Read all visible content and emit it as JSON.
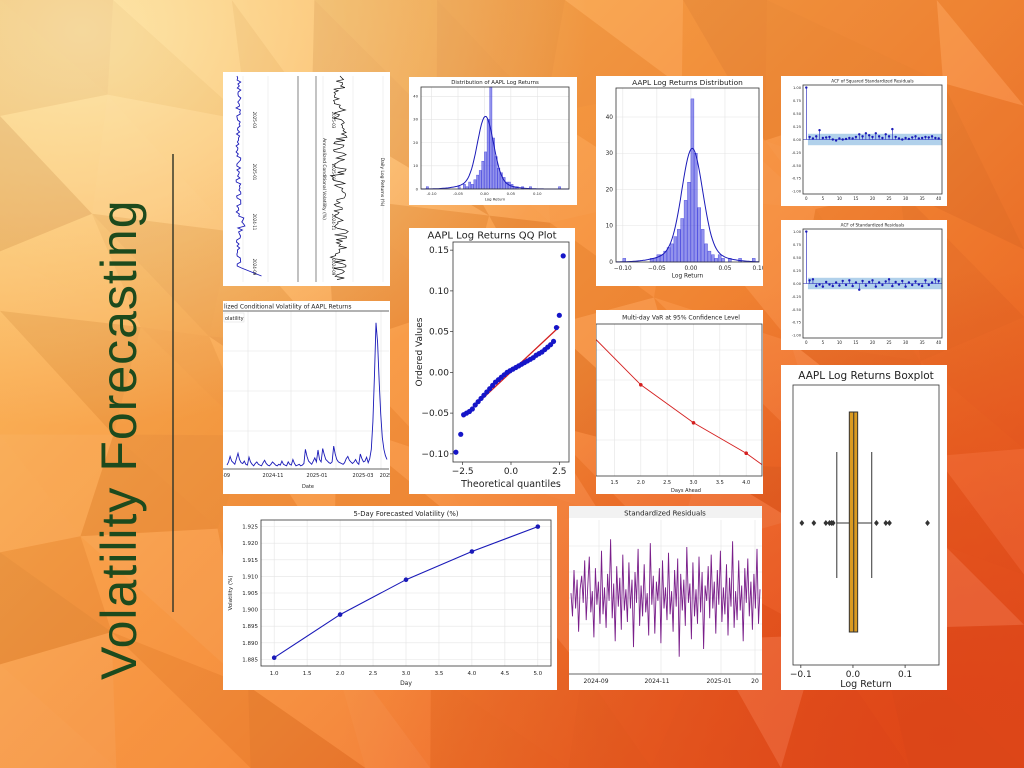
{
  "slide": {
    "title": "Volatility Forecasting",
    "accent": "#1d4a1d"
  },
  "colors": {
    "line": "#1a1ab8",
    "hist": "#3b3bdc",
    "box": "#d99a22",
    "trend": "#d42020",
    "resid": "#7a1f8a",
    "ci": "#9ec5e6"
  },
  "chart_data": [
    {
      "id": "rotated-series",
      "type": "line",
      "xtick_labels": [
        "2024-09",
        "2024-11",
        "2025-01",
        "2025-03"
      ],
      "ylabel_left": "Annualized Conditional Volatility (%)",
      "ylabel_right": "Daily Log Returns (%)"
    },
    {
      "id": "dist-small",
      "type": "bar",
      "title": "Distribution of AAPL Log Returns",
      "xlabel": "Log Return",
      "xticks": [
        -0.1,
        -0.05,
        0.0,
        0.05,
        0.1
      ],
      "xtick_labels": [
        "-0.10",
        "-0.05",
        "0.00",
        "0.05",
        "0.10"
      ],
      "xlim": [
        -0.12,
        0.16
      ],
      "ylim": [
        0,
        44
      ],
      "yticks": [
        0,
        10,
        20,
        30,
        40
      ],
      "bins_start": -0.11,
      "bin_width": 0.005,
      "values": [
        1,
        0,
        0,
        0,
        0,
        0,
        0,
        0,
        0,
        0,
        0,
        0,
        1,
        0,
        2,
        1,
        3,
        2,
        4,
        6,
        8,
        12,
        16,
        30,
        44,
        22,
        14,
        9,
        7,
        5,
        3,
        3,
        2,
        1,
        1,
        0,
        1,
        0,
        0,
        1,
        0,
        0,
        0,
        0,
        0,
        0,
        0,
        0,
        0,
        0,
        1
      ]
    },
    {
      "id": "dist-main",
      "type": "bar",
      "title": "AAPL Log Returns Distribution",
      "xlabel": "Log Return",
      "xticks": [
        -0.1,
        -0.05,
        0.0,
        0.05,
        0.1
      ],
      "xtick_labels": [
        "−0.10",
        "−0.05",
        "0.00",
        "0.05",
        "0.10"
      ],
      "yticks": [
        0,
        10,
        20,
        30,
        40
      ],
      "ylim": [
        0,
        48
      ],
      "xlim": [
        -0.11,
        0.1
      ],
      "bins_start": -0.1,
      "bin_width": 0.005,
      "values": [
        1,
        0,
        0,
        0,
        0,
        0,
        0,
        0,
        1,
        1,
        2,
        2,
        3,
        4,
        5,
        7,
        9,
        12,
        17,
        22,
        45,
        30,
        15,
        9,
        5,
        3,
        2,
        1,
        2,
        1,
        0,
        1,
        0,
        0,
        1,
        0,
        0,
        0,
        1
      ]
    },
    {
      "id": "acf-squared",
      "type": "scatter",
      "title": "ACF of Squared Standardized Residuals",
      "lags": [
        0,
        1,
        2,
        3,
        4,
        5,
        6,
        7,
        8,
        9,
        10,
        11,
        12,
        13,
        14,
        15,
        16,
        17,
        18,
        19,
        20,
        21,
        22,
        23,
        24,
        25,
        26,
        27,
        28,
        29,
        30,
        31,
        32,
        33,
        34,
        35,
        36,
        37,
        38,
        39,
        40
      ],
      "values": [
        1.0,
        0.05,
        0.02,
        0.06,
        0.18,
        0.03,
        0.04,
        0.05,
        0.0,
        -0.02,
        0.02,
        0.0,
        0.01,
        0.03,
        0.02,
        0.05,
        0.1,
        0.06,
        0.12,
        0.08,
        0.05,
        0.12,
        0.06,
        0.03,
        0.1,
        0.06,
        0.2,
        0.05,
        0.02,
        0.0,
        0.03,
        0.01,
        0.04,
        0.06,
        0.02,
        0.03,
        0.05,
        0.04,
        0.06,
        0.03,
        0.02
      ],
      "ci": 0.11,
      "xticks": [
        0,
        5,
        10,
        15,
        20,
        25,
        30,
        35,
        40
      ],
      "yticks": [
        -1.0,
        -0.75,
        -0.5,
        -0.25,
        0.0,
        0.25,
        0.5,
        0.75,
        1.0
      ],
      "ytick_labels": [
        "-1.00",
        "-0.75",
        "-0.50",
        "-0.25",
        "0.00",
        "0.25",
        "0.50",
        "0.75",
        "1.00"
      ],
      "xlim": [
        -1,
        41
      ],
      "ylim": [
        -1.05,
        1.05
      ]
    },
    {
      "id": "acf-standard",
      "type": "scatter",
      "title": "ACF of Standardized Residuals",
      "lags": [
        0,
        1,
        2,
        3,
        4,
        5,
        6,
        7,
        8,
        9,
        10,
        11,
        12,
        13,
        14,
        15,
        16,
        17,
        18,
        19,
        20,
        21,
        22,
        23,
        24,
        25,
        26,
        27,
        28,
        29,
        30,
        31,
        32,
        33,
        34,
        35,
        36,
        37,
        38,
        39,
        40
      ],
      "values": [
        1.0,
        0.06,
        0.08,
        -0.05,
        -0.02,
        -0.06,
        0.03,
        -0.02,
        -0.05,
        0.02,
        -0.04,
        0.05,
        -0.03,
        0.06,
        -0.05,
        0.02,
        -0.12,
        0.05,
        -0.04,
        0.03,
        0.06,
        -0.06,
        0.02,
        -0.03,
        0.04,
        0.08,
        -0.05,
        0.03,
        -0.02,
        0.05,
        -0.06,
        0.02,
        -0.03,
        0.04,
        -0.02,
        -0.05,
        0.06,
        -0.03,
        0.02,
        0.08,
        0.05
      ],
      "ci": 0.11,
      "xticks": [
        0,
        5,
        10,
        15,
        20,
        25,
        30,
        35,
        40
      ],
      "yticks": [
        -1.0,
        -0.75,
        -0.5,
        -0.25,
        0.0,
        0.25,
        0.5,
        0.75,
        1.0
      ],
      "ytick_labels": [
        "-1.00",
        "-0.75",
        "-0.50",
        "-0.25",
        "0.00",
        "0.25",
        "0.50",
        "0.75",
        "1.00"
      ],
      "xlim": [
        -1,
        41
      ],
      "ylim": [
        -1.05,
        1.05
      ]
    },
    {
      "id": "cond-vol",
      "type": "line",
      "title": "lized Conditional Volatility of AAPL Returns",
      "legend": "olatility",
      "xlabel": "Date",
      "xtick_labels": [
        "-09",
        "2024-11",
        "2025-01",
        "2025-03",
        "2025"
      ],
      "values": [
        0.5,
        0.9,
        1.6,
        1.0,
        0.8,
        0.6,
        1.3,
        2.0,
        1.2,
        0.8,
        0.7,
        1.0,
        0.6,
        0.5,
        1.5,
        0.9,
        0.6,
        0.4,
        0.7,
        0.9,
        0.6,
        0.5,
        0.4,
        0.8,
        1.1,
        0.7,
        0.5,
        0.4,
        0.6,
        0.9,
        0.7,
        0.5,
        0.4,
        0.6,
        0.5,
        1.0,
        0.6,
        0.5,
        0.4,
        0.9,
        0.6,
        0.5,
        1.2,
        0.7,
        0.4,
        0.5,
        0.6,
        0.4,
        0.5,
        0.7,
        2.5,
        1.6,
        1.0,
        0.8,
        0.6,
        1.0,
        1.4,
        0.9,
        2.4,
        1.2,
        0.9,
        2.6,
        1.8,
        1.2,
        1.0,
        0.8,
        0.7,
        0.9,
        2.9,
        1.9,
        1.2,
        0.9,
        0.8,
        0.7,
        0.6,
        0.8,
        1.3,
        1.6,
        1.1,
        0.9,
        0.7,
        0.9,
        1.2,
        0.8,
        0.6,
        1.9,
        1.3,
        0.9,
        1.0,
        1.5,
        0.8,
        1.3,
        2.5,
        6.0,
        12.0,
        18.5,
        16.0,
        11.0,
        7.0,
        4.0,
        2.5,
        1.7,
        1.2
      ],
      "ylim": [
        0,
        20
      ]
    },
    {
      "id": "qq-plot",
      "type": "scatter",
      "title": "AAPL Log Returns QQ Plot",
      "xlabel": "Theoretical quantiles",
      "ylabel": "Ordered Values",
      "xticks": [
        -2.5,
        0.0,
        2.5
      ],
      "xtick_labels": [
        "−2.5",
        "0.0",
        "2.5"
      ],
      "yticks": [
        -0.1,
        -0.05,
        0.0,
        0.05,
        0.1,
        0.15
      ],
      "ytick_labels": [
        "−0.10",
        "−0.05",
        "0.00",
        "0.05",
        "0.10",
        "0.15"
      ],
      "xlim": [
        -3.0,
        3.0
      ],
      "ylim": [
        -0.11,
        0.16
      ],
      "line": {
        "x0": -2.5,
        "y0": -0.055,
        "x1": 2.5,
        "y1": 0.056
      },
      "points": [
        [
          -2.85,
          -0.098
        ],
        [
          -2.6,
          -0.076
        ],
        [
          -2.45,
          -0.052
        ],
        [
          -2.3,
          -0.05
        ],
        [
          -2.15,
          -0.048
        ],
        [
          -2.0,
          -0.045
        ],
        [
          -1.85,
          -0.04
        ],
        [
          -1.7,
          -0.036
        ],
        [
          -1.55,
          -0.032
        ],
        [
          -1.4,
          -0.028
        ],
        [
          -1.25,
          -0.024
        ],
        [
          -1.1,
          -0.02
        ],
        [
          -0.95,
          -0.016
        ],
        [
          -0.8,
          -0.012
        ],
        [
          -0.65,
          -0.009
        ],
        [
          -0.5,
          -0.006
        ],
        [
          -0.35,
          -0.003
        ],
        [
          -0.2,
          0.0
        ],
        [
          -0.05,
          0.002
        ],
        [
          0.1,
          0.004
        ],
        [
          0.25,
          0.006
        ],
        [
          0.4,
          0.008
        ],
        [
          0.55,
          0.01
        ],
        [
          0.7,
          0.012
        ],
        [
          0.85,
          0.014
        ],
        [
          1.0,
          0.016
        ],
        [
          1.15,
          0.018
        ],
        [
          1.3,
          0.021
        ],
        [
          1.45,
          0.023
        ],
        [
          1.6,
          0.025
        ],
        [
          1.75,
          0.028
        ],
        [
          1.9,
          0.031
        ],
        [
          2.05,
          0.034
        ],
        [
          2.2,
          0.038
        ],
        [
          2.35,
          0.055
        ],
        [
          2.5,
          0.07
        ],
        [
          2.7,
          0.143
        ]
      ]
    },
    {
      "id": "var-plot",
      "type": "line",
      "title": "Multi-day VaR at 95% Confidence Level",
      "xlabel": "Days Ahead",
      "x": [
        1.0,
        2.0,
        3.0,
        4.0,
        4.3
      ],
      "y": [
        -0.015,
        -0.022,
        -0.027,
        -0.031,
        -0.0325
      ],
      "marker_x": [
        2.0,
        3.0,
        4.0
      ],
      "xticks": [
        1.5,
        2.0,
        2.5,
        3.0,
        3.5,
        4.0
      ],
      "xtick_labels": [
        "1.5",
        "2.0",
        "2.5",
        "3.0",
        "3.5",
        "4.0"
      ],
      "xlim": [
        1.15,
        4.3
      ],
      "ylim": [
        -0.034,
        -0.014
      ]
    },
    {
      "id": "forecast-vol",
      "type": "line",
      "title": "5-Day Forecasted Volatility (%)",
      "xlabel": "Day",
      "ylabel": "Volatility (%)",
      "x": [
        1.0,
        2.0,
        3.0,
        4.0,
        5.0
      ],
      "y": [
        1.8855,
        1.8985,
        1.909,
        1.9175,
        1.925
      ],
      "xticks": [
        1.0,
        1.5,
        2.0,
        2.5,
        3.0,
        3.5,
        4.0,
        4.5,
        5.0
      ],
      "xtick_labels": [
        "1.0",
        "1.5",
        "2.0",
        "2.5",
        "3.0",
        "3.5",
        "4.0",
        "4.5",
        "5.0"
      ],
      "yticks": [
        1.885,
        1.89,
        1.895,
        1.9,
        1.905,
        1.91,
        1.915,
        1.92,
        1.925
      ],
      "ytick_labels": [
        "1.885",
        "1.890",
        "1.895",
        "1.900",
        "1.905",
        "1.910",
        "1.915",
        "1.920",
        "1.925"
      ],
      "xlim": [
        0.8,
        5.2
      ],
      "ylim": [
        1.883,
        1.927
      ]
    },
    {
      "id": "std-resid",
      "type": "line",
      "title": "Standardized Residuals",
      "xtick_labels": [
        "2024-09",
        "2024-11",
        "2025-01",
        "20"
      ],
      "ylim": [
        -4,
        4
      ],
      "values": [
        0.2,
        -1.0,
        1.4,
        -0.6,
        0.9,
        -1.8,
        0.4,
        1.1,
        -0.3,
        1.9,
        -1.2,
        0.6,
        2.1,
        -0.8,
        0.3,
        -2.1,
        1.5,
        -0.4,
        0.8,
        -1.4,
        2.4,
        -0.9,
        0.5,
        -1.6,
        1.2,
        -0.2,
        3.0,
        -1.1,
        0.7,
        -2.3,
        1.6,
        -0.5,
        1.0,
        -1.7,
        2.2,
        -0.7,
        0.4,
        -1.3,
        1.8,
        -0.6,
        0.9,
        -2.6,
        1.3,
        -0.3,
        2.5,
        -1.5,
        0.6,
        -1.0,
        1.7,
        -0.8,
        0.2,
        -2.0,
        2.8,
        -0.4,
        1.1,
        -1.9,
        0.8,
        -0.2,
        1.5,
        -2.4,
        1.9,
        -0.6,
        0.5,
        -1.2,
        2.3,
        -0.9,
        0.3,
        -1.8,
        1.4,
        -0.5,
        2.0,
        -3.1,
        1.2,
        -0.7,
        0.9,
        -1.5,
        2.6,
        -0.3,
        0.7,
        -2.2,
        1.8,
        -1.0,
        0.4,
        -1.4,
        2.1,
        -0.8,
        1.3,
        -2.7,
        0.6,
        -0.2,
        1.6,
        -1.1,
        2.2,
        -0.6,
        0.8,
        -1.9,
        1.4,
        -0.4,
        2.4,
        -1.3,
        0.5,
        -0.9,
        1.7,
        -2.0,
        1.0,
        -0.5,
        2.9,
        -1.6,
        0.3,
        -1.2,
        1.9,
        -0.7,
        0.6,
        -2.3,
        1.5,
        -0.3,
        2.0,
        -1.0,
        0.8,
        -1.7,
        1.2,
        -0.6,
        2.5,
        -1.4,
        0.4
      ]
    },
    {
      "id": "boxplot",
      "type": "box",
      "title": "AAPL Log Returns Boxplot",
      "xlabel": "Log Return",
      "xticks": [
        -0.1,
        0.0,
        0.1
      ],
      "xtick_labels": [
        "−0.1",
        "0.0",
        "0.1"
      ],
      "xlim": [
        -0.115,
        0.165
      ],
      "q1": -0.007,
      "median": 0.0015,
      "q3": 0.009,
      "whisker_low": -0.031,
      "whisker_high": 0.036,
      "outliers": [
        -0.098,
        -0.075,
        -0.052,
        -0.045,
        -0.041,
        -0.038,
        0.045,
        0.063,
        0.07,
        0.143
      ]
    }
  ]
}
